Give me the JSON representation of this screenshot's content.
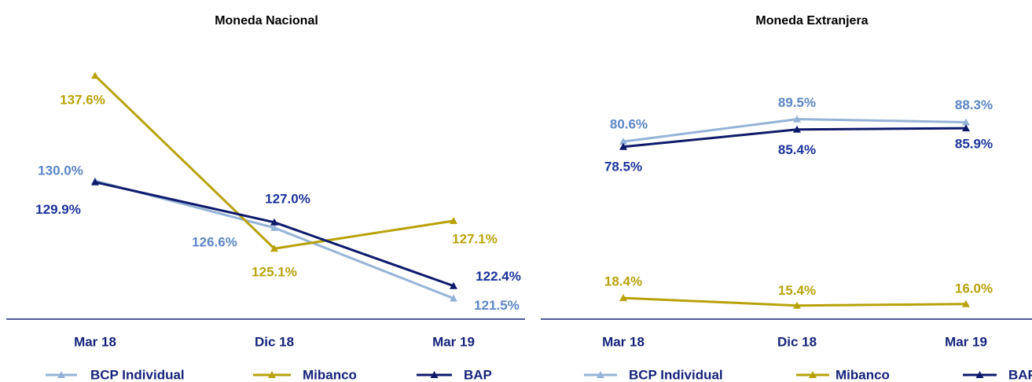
{
  "chart_data": [
    {
      "type": "line",
      "title": "Moneda Nacional",
      "categories": [
        "Mar 18",
        "Dic 18",
        "Mar 19"
      ],
      "ylim": [
        120,
        140
      ],
      "series": [
        {
          "name": "BCP Individual",
          "color": "#95b3d7",
          "values": [
            130.0,
            126.6,
            121.5
          ],
          "value_labels": [
            "130.0%",
            "126.6%",
            "121.5%"
          ]
        },
        {
          "name": "Mibanco",
          "color": "#b8a20a",
          "values": [
            137.6,
            125.1,
            127.1
          ],
          "value_labels": [
            "137.6%",
            "125.1%",
            "127.1%"
          ]
        },
        {
          "name": "BAP",
          "color": "#0d1a6b",
          "values": [
            129.9,
            127.0,
            122.4
          ],
          "value_labels": [
            "129.9%",
            "127.0%",
            "122.4%"
          ]
        }
      ]
    },
    {
      "type": "line",
      "title": "Moneda Extranjera",
      "categories": [
        "Mar 18",
        "Dic 18",
        "Mar 19"
      ],
      "ylim": [
        10,
        120
      ],
      "series": [
        {
          "name": "BCP Individual",
          "color": "#95b3d7",
          "values": [
            80.6,
            89.5,
            88.3
          ],
          "value_labels": [
            "80.6%",
            "89.5%",
            "88.3%"
          ]
        },
        {
          "name": "Mibanco",
          "color": "#b8a20a",
          "values": [
            18.4,
            15.4,
            16.0
          ],
          "value_labels": [
            "18.4%",
            "15.4%",
            "16.0%"
          ]
        },
        {
          "name": "BAP",
          "color": "#0d1a6b",
          "values": [
            78.5,
            85.4,
            85.9
          ],
          "value_labels": [
            "78.5%",
            "85.4%",
            "85.9%"
          ]
        }
      ]
    }
  ]
}
